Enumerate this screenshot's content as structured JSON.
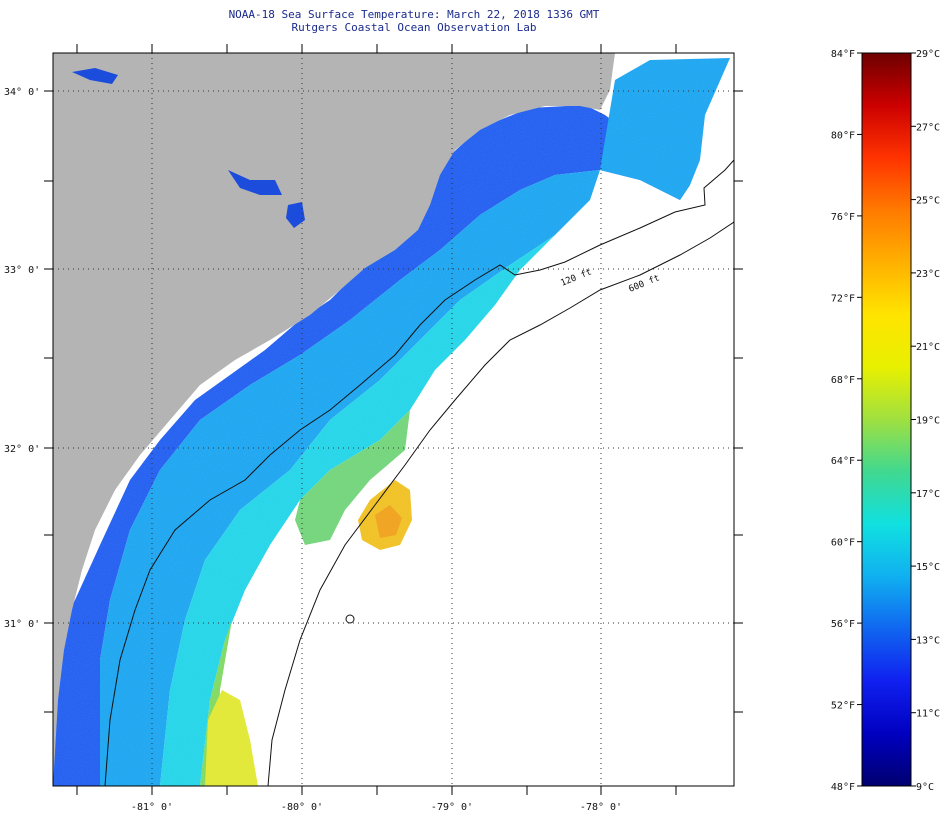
{
  "title": {
    "line1": "NOAA-18 Sea Surface Temperature:  March 22, 2018 1336 GMT",
    "line2": "Rutgers Coastal Ocean Observation Lab"
  },
  "map": {
    "latitude_labels": [
      "34° 0'",
      "33° 0'",
      "32° 0'",
      "31° 0'"
    ],
    "longitude_labels": [
      "-81° 0'",
      "-80° 0'",
      "-79° 0'",
      "-78° 0'"
    ],
    "contours": [
      {
        "label": "120 ft"
      },
      {
        "label": "600 ft"
      }
    ],
    "colors": {
      "land": "#b4b4b4",
      "cloud_mask": "#ffffff"
    }
  },
  "colorbar": {
    "fahrenheit_labels": [
      "84°F",
      "80°F",
      "76°F",
      "72°F",
      "68°F",
      "64°F",
      "60°F",
      "56°F",
      "52°F",
      "48°F"
    ],
    "celsius_labels": [
      "29°C",
      "27°C",
      "25°C",
      "23°C",
      "21°C",
      "19°C",
      "17°C",
      "15°C",
      "13°C",
      "11°C",
      "9°C"
    ],
    "range_f": [
      48,
      84
    ],
    "range_c": [
      9,
      29
    ],
    "gradient": [
      "#6e0000",
      "#cc0000",
      "#ff3300",
      "#ff7a00",
      "#ffb000",
      "#ffe400",
      "#e8f000",
      "#a0e040",
      "#40d890",
      "#10e0e0",
      "#10b0f0",
      "#1066f0",
      "#1020f0",
      "#0000c0",
      "#000070"
    ]
  }
}
